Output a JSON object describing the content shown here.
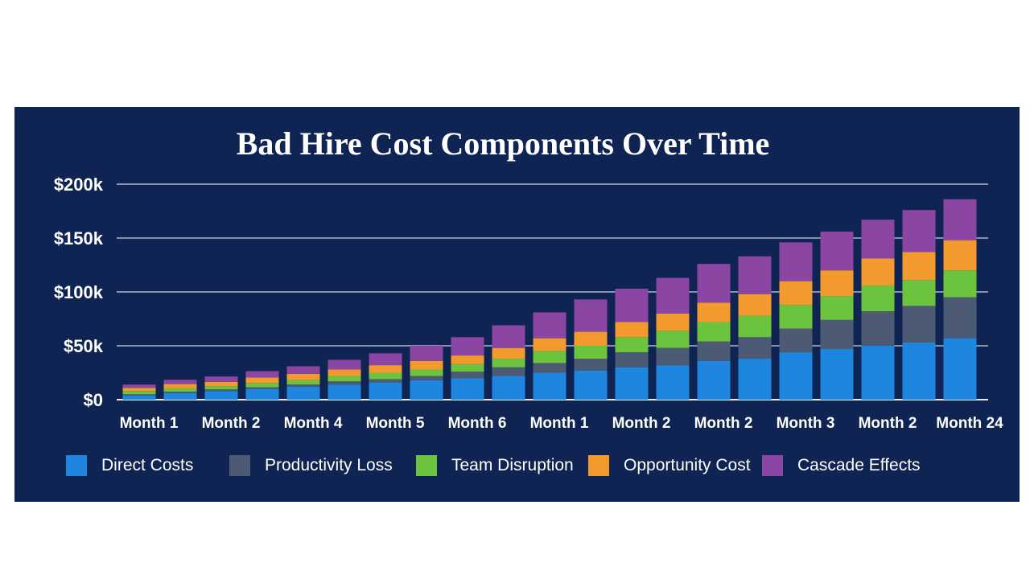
{
  "chart_data": {
    "type": "bar",
    "stacked": true,
    "title": "Bad Hire Cost Components Over Time",
    "xlabel": "",
    "ylabel": "",
    "ylim": [
      0,
      210000
    ],
    "yticks": [
      0,
      50000,
      100000,
      150000,
      200000
    ],
    "ytick_labels": [
      "$0",
      "$50k",
      "$100k",
      "$150k",
      "$200k"
    ],
    "grid": true,
    "legend_position": "bottom",
    "categories": [
      "Month 1",
      "",
      "Month 2",
      "",
      "Month 4",
      "",
      "Month 5",
      "",
      "Month 6",
      "",
      "Month 1",
      "",
      "Month 2",
      "",
      "Month 2",
      "",
      "Month 3",
      "",
      "Month 2",
      "",
      "Month 24"
    ],
    "x_tick_labels": [
      "Month 1",
      "Month 2",
      "Month 4",
      "Month 5",
      "Month 6",
      "Month 1",
      "Month 2",
      "Month 2",
      "Month 3",
      "Month 2",
      "Month 24"
    ],
    "series": [
      {
        "name": "Direct Costs",
        "color": "#1f86e0",
        "values": [
          4000,
          6000,
          8000,
          10000,
          12000,
          14000,
          16000,
          18000,
          20000,
          22000,
          25000,
          27000,
          30000,
          32000,
          36000,
          38000,
          44000,
          47000,
          50000,
          53000,
          57000
        ]
      },
      {
        "name": "Productivity Loss",
        "color": "#4d5a73",
        "values": [
          1000,
          1500,
          1500,
          1500,
          2000,
          3000,
          3000,
          4000,
          6000,
          8000,
          9000,
          11000,
          14000,
          16000,
          18000,
          20000,
          22000,
          27000,
          32000,
          34000,
          38000
        ]
      },
      {
        "name": "Team Disruption",
        "color": "#6cc33d",
        "values": [
          3000,
          3000,
          3000,
          4000,
          4000,
          5000,
          6000,
          6000,
          7000,
          8000,
          11000,
          12000,
          14000,
          16000,
          18000,
          20000,
          22000,
          22000,
          24000,
          24000,
          25000
        ]
      },
      {
        "name": "Opportunity Cost",
        "color": "#f39a2f",
        "values": [
          3000,
          4000,
          4000,
          5000,
          6000,
          6000,
          7000,
          8000,
          8000,
          10000,
          12000,
          13000,
          14000,
          16000,
          18000,
          20000,
          22000,
          24000,
          25000,
          26000,
          28000
        ]
      },
      {
        "name": "Cascade Effects",
        "color": "#8b46a4",
        "values": [
          3000,
          4000,
          5000,
          6000,
          7000,
          9000,
          11000,
          14000,
          17000,
          21000,
          24000,
          30000,
          31000,
          33000,
          36000,
          35000,
          36000,
          36000,
          36000,
          39000,
          38000
        ]
      }
    ]
  }
}
